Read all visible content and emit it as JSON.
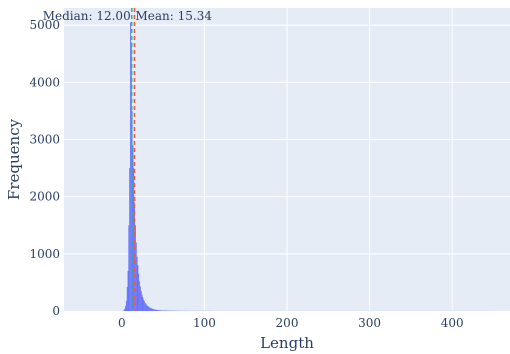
{
  "chart_data": {
    "type": "bar",
    "title": "",
    "xlabel": "Length",
    "ylabel": "Frequency",
    "xlim": [
      -70,
      470
    ],
    "ylim": [
      0,
      5300
    ],
    "x_ticks": [
      0,
      100,
      200,
      300,
      400
    ],
    "y_ticks": [
      0,
      1000,
      2000,
      3000,
      4000,
      5000
    ],
    "grid": true,
    "bins": {
      "x": [
        1,
        2,
        3,
        4,
        5,
        6,
        7,
        8,
        9,
        10,
        11,
        12,
        13,
        14,
        15,
        16,
        17,
        18,
        19,
        20,
        21,
        22,
        23,
        24,
        25,
        26,
        27,
        28,
        29,
        30,
        31,
        32,
        33,
        34,
        35,
        36,
        37,
        38,
        39,
        40,
        41,
        42,
        43,
        44,
        45,
        46,
        47,
        48,
        49,
        50,
        55,
        60,
        65,
        70,
        75,
        80,
        90,
        100,
        110,
        120,
        140,
        160,
        180,
        200,
        250,
        300,
        350,
        400,
        450
      ],
      "values": [
        5,
        15,
        40,
        90,
        180,
        420,
        700,
        1500,
        2500,
        5050,
        4700,
        3500,
        2900,
        2500,
        1900,
        1500,
        1200,
        950,
        800,
        650,
        520,
        430,
        350,
        290,
        240,
        200,
        170,
        140,
        120,
        100,
        85,
        75,
        65,
        55,
        48,
        42,
        37,
        32,
        28,
        25,
        22,
        19,
        17,
        15,
        13,
        12,
        11,
        10,
        9,
        8,
        6,
        5,
        4,
        3,
        3,
        2,
        2,
        2,
        1,
        1,
        1,
        1,
        1,
        1,
        1,
        1,
        1,
        1,
        1
      ]
    },
    "annotations": {
      "median_label": "Median: 12.00",
      "mean_label": "Mean: 15.34",
      "median_value": 12.0,
      "mean_value": 15.34
    },
    "colors": {
      "background": "#e5ecf6",
      "bars": "#636efa",
      "median_line": "#00cc96",
      "mean_line": "#ef553b",
      "grid": "#ffffff",
      "text": "#2a3f5f"
    }
  }
}
